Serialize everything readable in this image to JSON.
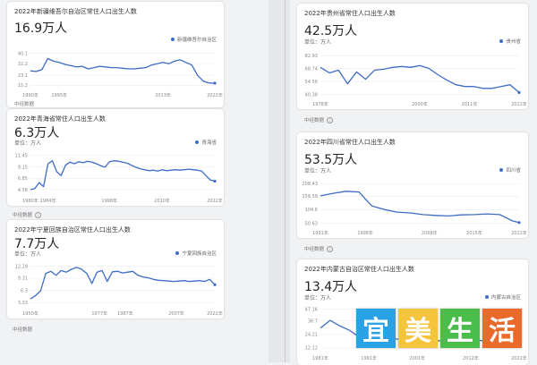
{
  "page": {
    "footer_note": "中经数据",
    "logo_chars": [
      "宜",
      "美",
      "生",
      "活"
    ],
    "logo_colors": [
      "#2aa3e6",
      "#f3c43c",
      "#4bbd4a",
      "#e96a2a"
    ]
  },
  "cards": [
    {
      "id": "xinjiang",
      "title": "2022年新疆维吾尔自治区常住人口出生人数",
      "value": "16.9万人",
      "unit": "单位：万人",
      "legend": "新疆维吾尔自治区",
      "note": "",
      "chart_data": {
        "type": "line",
        "x": [
          1990,
          1991,
          1992,
          1993,
          1994,
          1995,
          1996,
          1997,
          1998,
          1999,
          2000,
          2001,
          2002,
          2003,
          2004,
          2005,
          2006,
          2007,
          2008,
          2009,
          2010,
          2011,
          2012,
          2013,
          2014,
          2015,
          2016,
          2017,
          2018,
          2019,
          2020,
          2021,
          2022
        ],
        "series": [
          {
            "name": "新疆维吾尔自治区",
            "values": [
              26.5,
              26,
              27.5,
              36,
              34,
              33,
              31.5,
              30.5,
              29.5,
              30,
              28,
              29,
              30,
              29.5,
              29,
              29,
              28.5,
              28,
              28,
              28.5,
              29,
              31,
              32,
              33,
              32,
              34,
              35,
              33,
              31,
              23,
              18.5,
              17,
              16.9
            ]
          }
        ],
        "yticks": [
          15.2,
          23.1,
          32.2,
          40.1
        ],
        "xticks": [
          1990,
          1995,
          2013,
          2022
        ],
        "ylim": [
          12,
          44
        ]
      }
    },
    {
      "id": "qinghai",
      "title": "2022年青海省常住人口出生人数",
      "value": "6.3万人",
      "unit": "单位：万人",
      "legend": "青海省",
      "note": "中经数据",
      "chart_data": {
        "type": "line",
        "x": [
          1980,
          1981,
          1982,
          1983,
          1984,
          1985,
          1986,
          1987,
          1988,
          1989,
          1990,
          1991,
          1992,
          1993,
          1994,
          1995,
          1996,
          1997,
          1998,
          1999,
          2000,
          2001,
          2002,
          2003,
          2004,
          2005,
          2006,
          2007,
          2008,
          2009,
          2010,
          2011,
          2012,
          2013,
          2014,
          2015,
          2016,
          2017,
          2018,
          2019,
          2020,
          2021,
          2022
        ],
        "series": [
          {
            "name": "青海省",
            "values": [
              4.6,
              4.8,
              6.0,
              5.2,
              9.8,
              10.4,
              8.2,
              7.4,
              9.5,
              10.1,
              9.8,
              10.2,
              10.0,
              10.3,
              10.1,
              9.8,
              9.4,
              9.1,
              10.2,
              10.4,
              10.3,
              10.1,
              9.9,
              9.5,
              9.1,
              8.8,
              8.6,
              8.4,
              8.5,
              8.3,
              8.6,
              8.4,
              8.5,
              8.6,
              8.5,
              8.6,
              8.7,
              8.6,
              8.5,
              8.3,
              7.4,
              6.5,
              6.3
            ]
          }
        ],
        "yticks": [
          4.58,
          6.85,
          9.15,
          11.45
        ],
        "xticks": [
          1980,
          1984,
          1998,
          2010,
          2022
        ],
        "ylim": [
          3.5,
          12.5
        ]
      }
    },
    {
      "id": "ningxia",
      "title": "2022年宁夏回族自治区常住人口出生人数",
      "value": "7.7万人",
      "unit": "单位：万人",
      "legend": "宁夏回族自治区",
      "note": "中经数据",
      "chart_data": {
        "type": "line",
        "x": [
          1950,
          1952,
          1954,
          1956,
          1958,
          1960,
          1962,
          1964,
          1966,
          1968,
          1970,
          1972,
          1974,
          1976,
          1978,
          1980,
          1982,
          1984,
          1986,
          1988,
          1990,
          1992,
          1994,
          1996,
          1998,
          2000,
          2002,
          2004,
          2006,
          2008,
          2010,
          2012,
          2014,
          2016,
          2018,
          2020,
          2022
        ],
        "series": [
          {
            "name": "宁夏回族自治区",
            "values": [
              4.2,
              5.0,
              6.2,
              10.5,
              11.0,
              10.0,
              11.2,
              10.8,
              11.5,
              12.0,
              11.5,
              10.5,
              8.0,
              10.8,
              11.2,
              8.5,
              10.9,
              11.0,
              10.6,
              10.8,
              11.0,
              10.0,
              9.6,
              9.4,
              9.0,
              8.8,
              8.7,
              8.6,
              8.5,
              8.6,
              8.7,
              8.5,
              8.6,
              8.7,
              8.5,
              9.0,
              7.7
            ]
          }
        ],
        "yticks": [
          3.33,
          6.3,
          9.31,
          12.29
        ],
        "xticks": [
          1950,
          1977,
          1987,
          2007,
          2022
        ],
        "ylim": [
          2,
          13.5
        ]
      }
    },
    {
      "id": "guizhou",
      "title": "2022年贵州省常住人口出生人数",
      "value": "42.5万人",
      "unit": "单位：万人",
      "legend": "贵州省",
      "note": "中经数据",
      "chart_data": {
        "type": "line",
        "x": [
          1978,
          1980,
          1982,
          1984,
          1986,
          1988,
          1990,
          1992,
          1994,
          1996,
          1998,
          2000,
          2002,
          2004,
          2006,
          2008,
          2010,
          2012,
          2014,
          2016,
          2018,
          2020,
          2022
        ],
        "series": [
          {
            "name": "贵州省",
            "values": [
              70,
              64,
              67,
              52,
              65,
              57,
              67,
              68,
              70,
              71,
              70,
              72,
              69,
              62,
              56,
              51,
              49,
              49,
              47,
              47,
              49,
              51,
              42.5
            ]
          }
        ],
        "yticks": [
          40.38,
          54.56,
          68.74,
          82.93
        ],
        "xticks": [
          1978,
          2000,
          2011,
          2022
        ],
        "ylim": [
          36,
          87
        ]
      }
    },
    {
      "id": "sichuan",
      "title": "2022年四川省常住人口出生人数",
      "value": "53.5万人",
      "unit": "单位：万人",
      "legend": "四川省",
      "note": "中经数据",
      "chart_data": {
        "type": "line",
        "x": [
          1991,
          1993,
          1995,
          1997,
          1999,
          2001,
          2003,
          2005,
          2007,
          2009,
          2011,
          2013,
          2015,
          2017,
          2019,
          2021,
          2022
        ],
        "series": [
          {
            "name": "四川省",
            "values": [
              160,
              170,
              178,
              175,
              120,
              105,
              95,
              92,
              85,
              82,
              80,
              84,
              85,
              88,
              85,
              60,
              53.5
            ]
          }
        ],
        "yticks": [
          50.63,
          104.6,
          158.58,
          208.43
        ],
        "xticks": [
          1991,
          1998,
          2008,
          2015,
          2022
        ],
        "ylim": [
          35,
          220
        ]
      }
    },
    {
      "id": "neimenggu",
      "title": "2022年内蒙古自治区常住人口出生人数",
      "value": "13.4万人",
      "unit": "单位：万人",
      "legend": "内蒙古自治区",
      "note": "",
      "chart_data": {
        "type": "line",
        "x": [
          1981,
          1983,
          1985,
          1987,
          1989,
          1991,
          1993,
          1995,
          1997,
          1999,
          2001,
          2003,
          2005,
          2007,
          2009,
          2011,
          2013,
          2015,
          2017,
          2019,
          2021,
          2022
        ],
        "series": [
          {
            "name": "内蒙古自治区",
            "values": [
              30,
              37,
              32,
              28,
              22,
              24,
              23,
              21,
              20,
              19.5,
              19,
              19,
              18.5,
              18.8,
              19,
              19.5,
              19.2,
              18.5,
              18,
              17,
              15,
              13.4
            ]
          }
        ],
        "yticks": [
          12.12,
          24.21,
          36.7,
          47.16
        ],
        "xticks": [
          1981,
          1991,
          2001,
          2012,
          2022
        ],
        "ylim": [
          8,
          50
        ]
      }
    }
  ]
}
